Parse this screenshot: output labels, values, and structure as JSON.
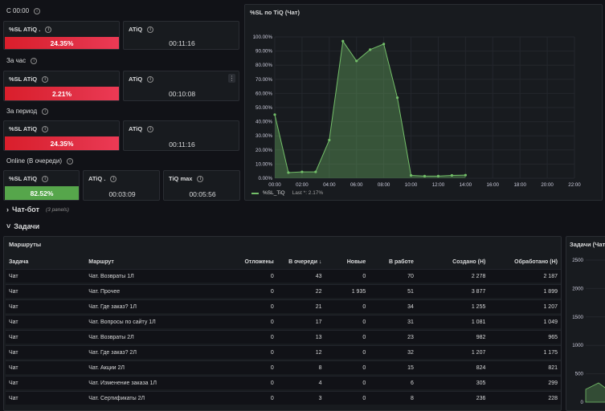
{
  "sections": {
    "since_midnight": "С 00:00",
    "last_hour": "За час",
    "period": "За период",
    "online": "Online (В очереди)"
  },
  "stats": {
    "row1": {
      "sl_title": "%SL ATiQ .",
      "sl_value": "24.35%",
      "atiq_title": "ATiQ",
      "atiq_value": "00:11:16"
    },
    "row2": {
      "sl_title": "%SL ATiQ",
      "sl_value": "2.21%",
      "atiq_title": "ATiQ",
      "atiq_value": "00:10:08"
    },
    "row3": {
      "sl_title": "%SL ATiQ",
      "sl_value": "24.35%",
      "atiq_title": "ATiQ",
      "atiq_value": "00:11:16"
    },
    "row4": {
      "sl_title": "%SL ATiQ",
      "sl_value": "82.52%",
      "atiq_title": "ATiQ .",
      "atiq_value": "00:03:09",
      "max_title": "TiQ max",
      "max_value": "00:05:56"
    }
  },
  "chart_panel": {
    "title": "%SL по TiQ (Чат)",
    "legend_label": "%SL_TiQ",
    "legend_last": "Last *: 2.17%"
  },
  "chart_data": {
    "type": "area",
    "title": "%SL по TiQ (Чат)",
    "x_ticks": [
      "00:00",
      "02:00",
      "04:00",
      "06:00",
      "08:00",
      "10:00",
      "12:00",
      "14:00",
      "16:00",
      "18:00",
      "20:00",
      "22:00"
    ],
    "y_ticks": [
      "100.00%",
      "90.00%",
      "80.00%",
      "70.00%",
      "60.00%",
      "50.00%",
      "40.00%",
      "30.00%",
      "20.00%",
      "10.00%",
      "0.00%"
    ],
    "ylim": [
      0,
      100
    ],
    "xlim": [
      0,
      22
    ],
    "series": [
      {
        "name": "%SL_TiQ",
        "color": "#73bf69",
        "x": [
          0,
          1,
          2,
          3,
          4,
          5,
          6,
          7,
          8,
          9,
          10,
          11,
          12,
          13,
          14
        ],
        "y": [
          45,
          4,
          4.5,
          4.5,
          27,
          97,
          83,
          91,
          95,
          57,
          2,
          1.5,
          1.5,
          2,
          2.17
        ]
      }
    ]
  },
  "rows": {
    "chatbot": {
      "label": "Чат-бот",
      "sub": "(3 panels)"
    },
    "tasks": {
      "label": "Задачи"
    }
  },
  "routes_panel": {
    "title": "Маршруты",
    "columns": [
      "Задача",
      "Маршрут",
      "Отложены",
      "В очереди ↓",
      "Новые",
      "В работе",
      "Создано (Н)",
      "Обработано (Н)"
    ],
    "rows": [
      [
        "Чат",
        "Чат. Возвраты 1Л",
        "0",
        "43",
        "0",
        "70",
        "2 278",
        "2 187"
      ],
      [
        "Чат",
        "Чат. Прочее",
        "0",
        "22",
        "1 935",
        "51",
        "3 877",
        "1 899"
      ],
      [
        "Чат",
        "Чат. Где заказ? 1Л",
        "0",
        "21",
        "0",
        "34",
        "1 255",
        "1 207"
      ],
      [
        "Чат",
        "Чат. Вопросы по сайту 1Л",
        "0",
        "17",
        "0",
        "31",
        "1 081",
        "1 049"
      ],
      [
        "Чат",
        "Чат. Возвраты 2Л",
        "0",
        "13",
        "0",
        "23",
        "982",
        "965"
      ],
      [
        "Чат",
        "Чат. Где заказ? 2Л",
        "0",
        "12",
        "0",
        "32",
        "1 207",
        "1 175"
      ],
      [
        "Чат",
        "Чат. Акции 2Л",
        "0",
        "8",
        "0",
        "15",
        "824",
        "821"
      ],
      [
        "Чат",
        "Чат. Изменение заказа 1Л",
        "0",
        "4",
        "0",
        "6",
        "305",
        "299"
      ],
      [
        "Чат",
        "Чат. Сертификаты 2Л",
        "0",
        "3",
        "0",
        "8",
        "236",
        "228"
      ]
    ]
  },
  "tasks_panel": {
    "title": "Задачи (Чат",
    "y_ticks": [
      "2500",
      "2000",
      "1500",
      "1000",
      "500",
      "0"
    ]
  },
  "colors": {
    "red": "#e02f44",
    "green": "#56a64b",
    "line": "#73bf69",
    "bg": "#111217",
    "panel": "#181b1f"
  }
}
